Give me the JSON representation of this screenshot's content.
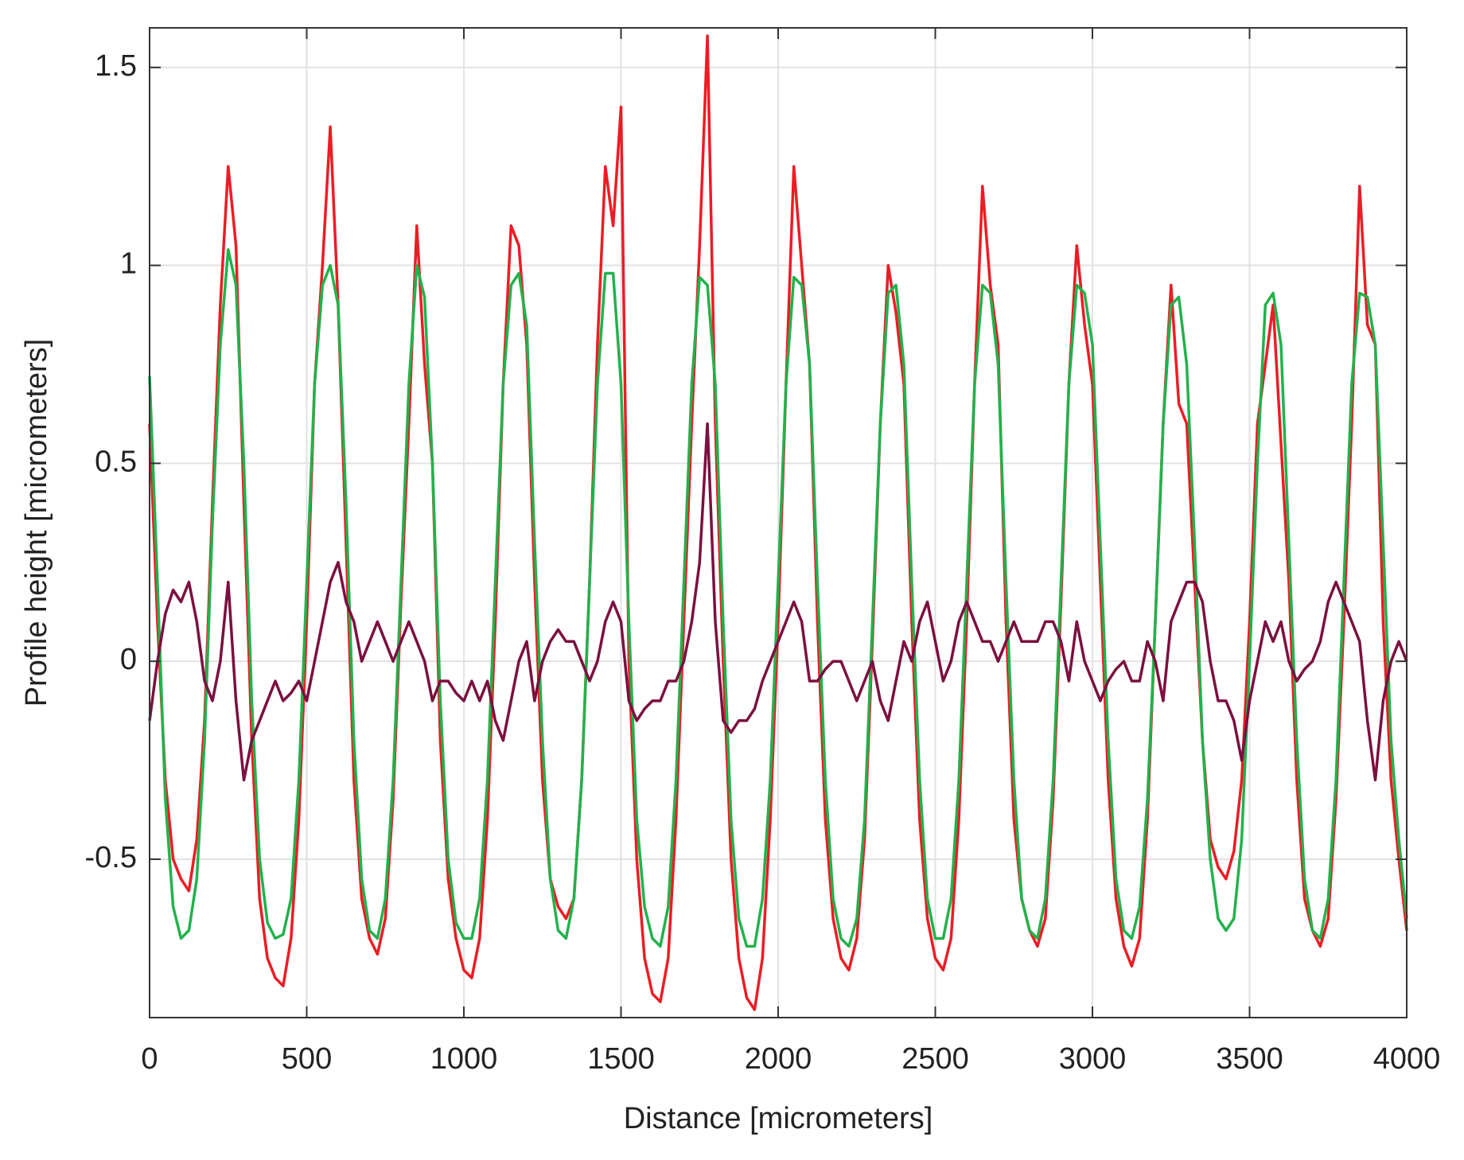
{
  "chart_data": {
    "type": "line",
    "x_label": "Distance [micrometers]",
    "y_label": "Profile height [micrometers]",
    "x": [
      0,
      25,
      50,
      75,
      100,
      125,
      150,
      175,
      200,
      225,
      250,
      275,
      300,
      325,
      350,
      375,
      400,
      425,
      450,
      475,
      500,
      525,
      550,
      575,
      600,
      625,
      650,
      675,
      700,
      725,
      750,
      775,
      800,
      825,
      850,
      875,
      900,
      925,
      950,
      975,
      1000,
      1025,
      1050,
      1075,
      1100,
      1125,
      1150,
      1175,
      1200,
      1225,
      1250,
      1275,
      1300,
      1325,
      1350,
      1375,
      1400,
      1425,
      1450,
      1475,
      1500,
      1525,
      1550,
      1575,
      1600,
      1625,
      1650,
      1675,
      1700,
      1725,
      1750,
      1775,
      1800,
      1825,
      1850,
      1875,
      1900,
      1925,
      1950,
      1975,
      2000,
      2025,
      2050,
      2075,
      2100,
      2125,
      2150,
      2175,
      2200,
      2225,
      2250,
      2275,
      2300,
      2325,
      2350,
      2375,
      2400,
      2425,
      2450,
      2475,
      2500,
      2525,
      2550,
      2575,
      2600,
      2625,
      2650,
      2675,
      2700,
      2725,
      2750,
      2775,
      2800,
      2825,
      2850,
      2875,
      2900,
      2925,
      2950,
      2975,
      3000,
      3025,
      3050,
      3075,
      3100,
      3125,
      3150,
      3175,
      3200,
      3225,
      3250,
      3275,
      3300,
      3325,
      3350,
      3375,
      3400,
      3425,
      3450,
      3475,
      3500,
      3525,
      3550,
      3575,
      3600,
      3625,
      3650,
      3675,
      3700,
      3725,
      3750,
      3775,
      3800,
      3825,
      3850,
      3875,
      3900,
      3925,
      3950,
      3975,
      4000
    ],
    "series": [
      {
        "color": "#ed1c24",
        "values": [
          0.6,
          0.1,
          -0.3,
          -0.5,
          -0.55,
          -0.58,
          -0.45,
          -0.15,
          0.4,
          0.9,
          1.25,
          1.05,
          0.4,
          -0.2,
          -0.6,
          -0.75,
          -0.8,
          -0.82,
          -0.7,
          -0.4,
          0.1,
          0.7,
          1.0,
          1.35,
          0.9,
          0.3,
          -0.3,
          -0.6,
          -0.7,
          -0.74,
          -0.65,
          -0.35,
          0.15,
          0.6,
          1.1,
          0.75,
          0.5,
          -0.2,
          -0.55,
          -0.7,
          -0.78,
          -0.8,
          -0.7,
          -0.4,
          0.1,
          0.7,
          1.1,
          1.05,
          0.8,
          0.2,
          -0.3,
          -0.55,
          -0.62,
          -0.65,
          -0.6,
          -0.3,
          0.2,
          0.8,
          1.25,
          1.1,
          1.4,
          0.0,
          -0.5,
          -0.75,
          -0.84,
          -0.86,
          -0.75,
          -0.4,
          0.1,
          0.6,
          1.05,
          1.58,
          0.6,
          0.0,
          -0.5,
          -0.75,
          -0.85,
          -0.88,
          -0.75,
          -0.4,
          0.1,
          0.7,
          1.25,
          1.0,
          0.75,
          0.1,
          -0.4,
          -0.65,
          -0.75,
          -0.78,
          -0.7,
          -0.45,
          0.05,
          0.6,
          1.0,
          0.88,
          0.7,
          0.1,
          -0.4,
          -0.65,
          -0.75,
          -0.78,
          -0.7,
          -0.4,
          0.1,
          0.7,
          1.2,
          0.95,
          0.8,
          0.1,
          -0.4,
          -0.6,
          -0.68,
          -0.72,
          -0.65,
          -0.35,
          0.15,
          0.7,
          1.05,
          0.85,
          0.7,
          0.2,
          -0.3,
          -0.6,
          -0.72,
          -0.77,
          -0.7,
          -0.4,
          0.1,
          0.6,
          0.95,
          0.65,
          0.6,
          0.2,
          -0.2,
          -0.45,
          -0.52,
          -0.55,
          -0.48,
          -0.3,
          0.1,
          0.6,
          0.75,
          0.9,
          0.55,
          0.2,
          -0.3,
          -0.6,
          -0.68,
          -0.72,
          -0.65,
          -0.35,
          0.1,
          0.6,
          1.2,
          0.85,
          0.8,
          0.1,
          -0.3,
          -0.5,
          -0.68
        ]
      },
      {
        "color": "#22b24c",
        "values": [
          0.72,
          0.2,
          -0.35,
          -0.62,
          -0.7,
          -0.68,
          -0.55,
          -0.2,
          0.35,
          0.8,
          1.04,
          0.95,
          0.5,
          -0.1,
          -0.5,
          -0.66,
          -0.7,
          -0.69,
          -0.6,
          -0.3,
          0.2,
          0.7,
          0.95,
          1.0,
          0.9,
          0.4,
          -0.2,
          -0.55,
          -0.68,
          -0.7,
          -0.6,
          -0.3,
          0.2,
          0.7,
          1.0,
          0.92,
          0.5,
          -0.1,
          -0.5,
          -0.66,
          -0.7,
          -0.7,
          -0.6,
          -0.3,
          0.2,
          0.7,
          0.95,
          0.98,
          0.85,
          0.3,
          -0.2,
          -0.55,
          -0.68,
          -0.7,
          -0.6,
          -0.3,
          0.2,
          0.7,
          0.98,
          0.98,
          0.7,
          0.1,
          -0.4,
          -0.62,
          -0.7,
          -0.72,
          -0.62,
          -0.3,
          0.2,
          0.7,
          0.97,
          0.95,
          0.7,
          0.1,
          -0.4,
          -0.65,
          -0.72,
          -0.72,
          -0.6,
          -0.3,
          0.2,
          0.7,
          0.97,
          0.95,
          0.75,
          0.2,
          -0.3,
          -0.6,
          -0.7,
          -0.72,
          -0.65,
          -0.4,
          0.1,
          0.6,
          0.93,
          0.95,
          0.75,
          0.2,
          -0.3,
          -0.6,
          -0.7,
          -0.7,
          -0.6,
          -0.3,
          0.2,
          0.7,
          0.95,
          0.93,
          0.75,
          0.2,
          -0.3,
          -0.6,
          -0.68,
          -0.7,
          -0.6,
          -0.3,
          0.2,
          0.7,
          0.95,
          0.93,
          0.8,
          0.3,
          -0.2,
          -0.55,
          -0.68,
          -0.7,
          -0.62,
          -0.35,
          0.1,
          0.6,
          0.9,
          0.92,
          0.75,
          0.3,
          -0.2,
          -0.5,
          -0.65,
          -0.68,
          -0.65,
          -0.45,
          0.0,
          0.5,
          0.9,
          0.93,
          0.8,
          0.3,
          -0.2,
          -0.55,
          -0.68,
          -0.7,
          -0.6,
          -0.3,
          0.2,
          0.7,
          0.93,
          0.92,
          0.8,
          0.3,
          -0.2,
          -0.45,
          -0.65
        ]
      },
      {
        "color": "#7b1040",
        "values": [
          -0.15,
          0.0,
          0.12,
          0.18,
          0.15,
          0.2,
          0.1,
          -0.05,
          -0.1,
          0.0,
          0.2,
          -0.1,
          -0.3,
          -0.2,
          -0.15,
          -0.1,
          -0.05,
          -0.1,
          -0.08,
          -0.05,
          -0.1,
          0.0,
          0.1,
          0.2,
          0.25,
          0.15,
          0.1,
          0.0,
          0.05,
          0.1,
          0.05,
          0.0,
          0.05,
          0.1,
          0.05,
          0.0,
          -0.1,
          -0.05,
          -0.05,
          -0.08,
          -0.1,
          -0.05,
          -0.1,
          -0.05,
          -0.15,
          -0.2,
          -0.1,
          0.0,
          0.05,
          -0.1,
          0.0,
          0.05,
          0.08,
          0.05,
          0.05,
          0.0,
          -0.05,
          0.0,
          0.1,
          0.15,
          0.1,
          -0.1,
          -0.15,
          -0.12,
          -0.1,
          -0.1,
          -0.05,
          -0.05,
          0.0,
          0.1,
          0.25,
          0.6,
          0.1,
          -0.15,
          -0.18,
          -0.15,
          -0.15,
          -0.12,
          -0.05,
          0.0,
          0.05,
          0.1,
          0.15,
          0.1,
          -0.05,
          -0.05,
          -0.02,
          0.0,
          0.0,
          -0.05,
          -0.1,
          -0.05,
          0.0,
          -0.1,
          -0.15,
          -0.05,
          0.05,
          0.0,
          0.1,
          0.15,
          0.05,
          -0.05,
          0.0,
          0.1,
          0.15,
          0.1,
          0.05,
          0.05,
          0.0,
          0.05,
          0.1,
          0.05,
          0.05,
          0.05,
          0.1,
          0.1,
          0.05,
          -0.05,
          0.1,
          0.0,
          -0.05,
          -0.1,
          -0.05,
          -0.02,
          0.0,
          -0.05,
          -0.05,
          0.05,
          0.0,
          -0.1,
          0.1,
          0.15,
          0.2,
          0.2,
          0.15,
          0.0,
          -0.1,
          -0.1,
          -0.15,
          -0.25,
          -0.1,
          0.0,
          0.1,
          0.05,
          0.1,
          0.0,
          -0.05,
          -0.02,
          0.0,
          0.05,
          0.15,
          0.2,
          0.15,
          0.1,
          0.05,
          -0.15,
          -0.3,
          -0.1,
          0.0,
          0.05,
          0.0
        ]
      }
    ],
    "xlim": [
      0,
      4000
    ],
    "xticks": [
      0,
      500,
      1000,
      1500,
      2000,
      2500,
      3000,
      3500,
      4000
    ],
    "ylim": [
      -0.9,
      1.6
    ],
    "yticks": [
      -0.5,
      0,
      0.5,
      1,
      1.5
    ],
    "grid": true
  }
}
